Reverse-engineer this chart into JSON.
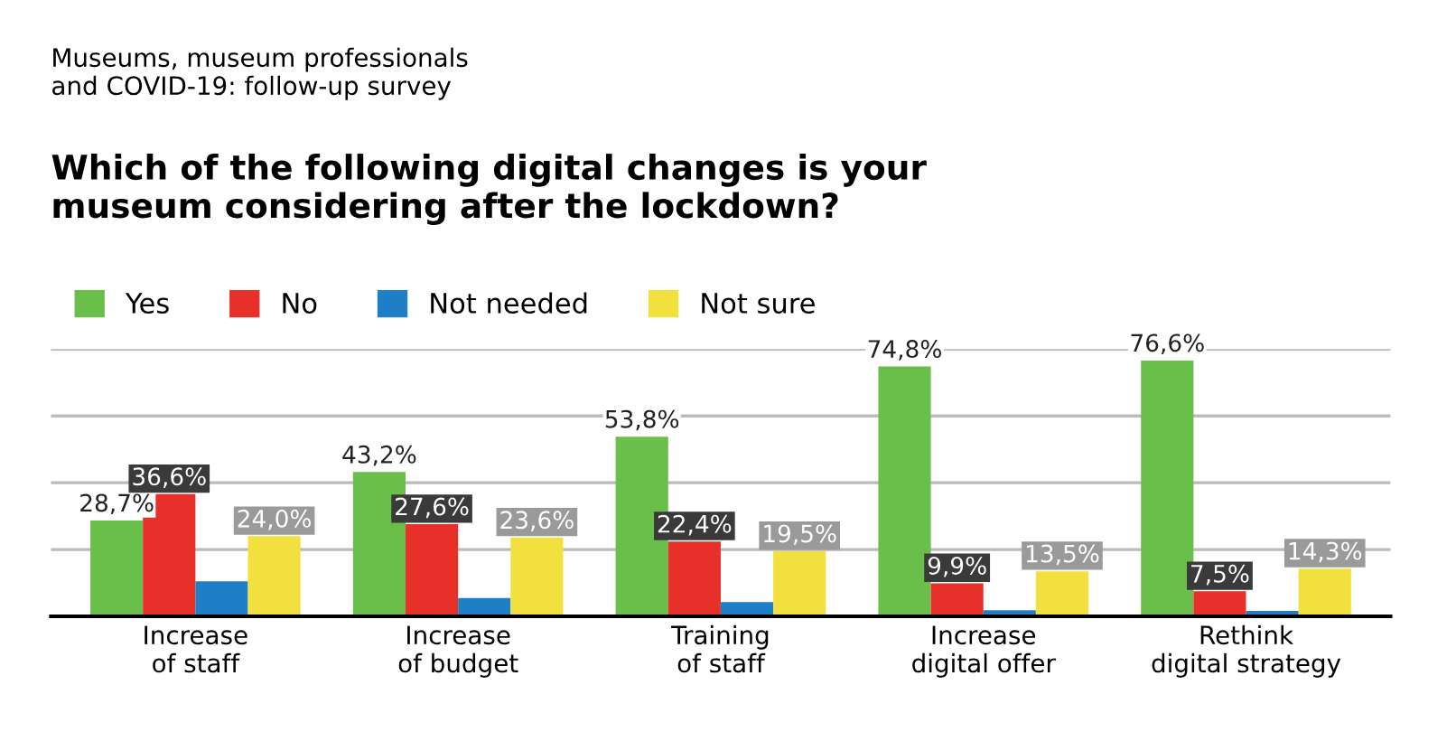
{
  "chart_data": {
    "type": "bar",
    "title": "Which of the following digital changes is your\nmuseum considering after the lockdown?",
    "subtitle": "Museums, museum professionals\nand COVID-19: follow-up survey",
    "categories": [
      "Increase\nof staff",
      "Increase\nof budget",
      "Training\nof staff",
      "Increase\ndigital offer",
      "Rethink\ndigital strategy"
    ],
    "series": [
      {
        "name": "Yes",
        "color": "#6abf4b",
        "values": [
          28.7,
          43.2,
          53.8,
          74.8,
          76.6
        ],
        "value_labels": [
          "28,7%",
          "43,2%",
          "53,8%",
          "74,8%",
          "76,6%"
        ]
      },
      {
        "name": "No",
        "color": "#e8302a",
        "values": [
          36.6,
          27.6,
          22.4,
          9.9,
          7.5
        ],
        "value_labels": [
          "36,6%",
          "27,6%",
          "22,4%",
          "9,9%",
          "7,5%"
        ]
      },
      {
        "name": "Not needed",
        "color": "#1f7fc6",
        "values": [
          10.5,
          5.5,
          4.3,
          1.8,
          1.6
        ]
      },
      {
        "name": "Not sure",
        "color": "#f2e03e",
        "values": [
          24.0,
          23.6,
          19.5,
          13.5,
          14.3
        ],
        "value_labels": [
          "24,0%",
          "23,6%",
          "19,5%",
          "13,5%",
          "14,3%"
        ]
      }
    ],
    "ylim": [
      0,
      80
    ],
    "yticks": [
      {
        "value": 20,
        "label": null
      },
      {
        "value": 40,
        "label": null
      },
      {
        "value": 60,
        "label": null
      },
      {
        "value": 80,
        "label": null
      }
    ],
    "grid": "y",
    "legend": "top left",
    "tick_labels": "x"
  }
}
